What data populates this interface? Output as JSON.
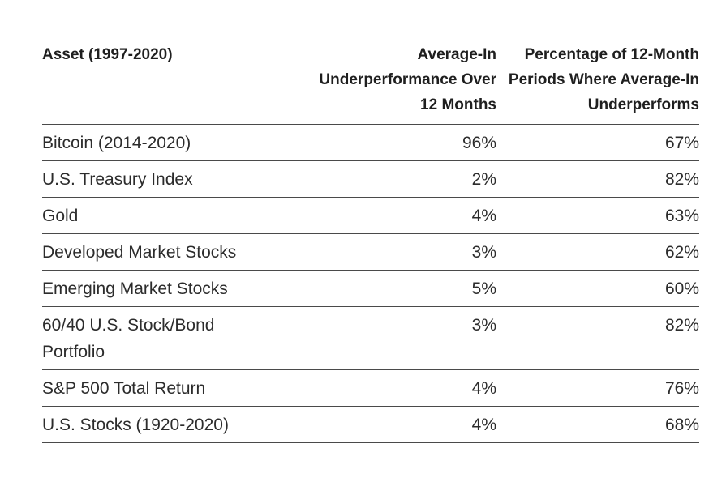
{
  "table": {
    "headers": [
      {
        "lines": [
          "Asset (1997-2020)"
        ]
      },
      {
        "lines": [
          "Average-In",
          "Underperformance Over",
          "12 Months"
        ]
      },
      {
        "lines": [
          "Percentage of 12-Month",
          "Periods Where Average-In",
          "Underperforms"
        ]
      }
    ],
    "rows": [
      {
        "asset": [
          "Bitcoin (2014-2020)"
        ],
        "underperformance": "96%",
        "percent_periods": "67%"
      },
      {
        "asset": [
          "U.S. Treasury Index"
        ],
        "underperformance": "2%",
        "percent_periods": "82%"
      },
      {
        "asset": [
          "Gold"
        ],
        "underperformance": "4%",
        "percent_periods": "63%"
      },
      {
        "asset": [
          "Developed Market Stocks"
        ],
        "underperformance": "3%",
        "percent_periods": "62%"
      },
      {
        "asset": [
          "Emerging Market Stocks"
        ],
        "underperformance": "5%",
        "percent_periods": "60%"
      },
      {
        "asset": [
          "60/40 U.S. Stock/Bond",
          "Portfolio"
        ],
        "underperformance": "3%",
        "percent_periods": "82%"
      },
      {
        "asset": [
          "S&P 500 Total Return"
        ],
        "underperformance": "4%",
        "percent_periods": "76%"
      },
      {
        "asset": [
          "U.S. Stocks (1920-2020)"
        ],
        "underperformance": "4%",
        "percent_periods": "68%"
      }
    ]
  }
}
